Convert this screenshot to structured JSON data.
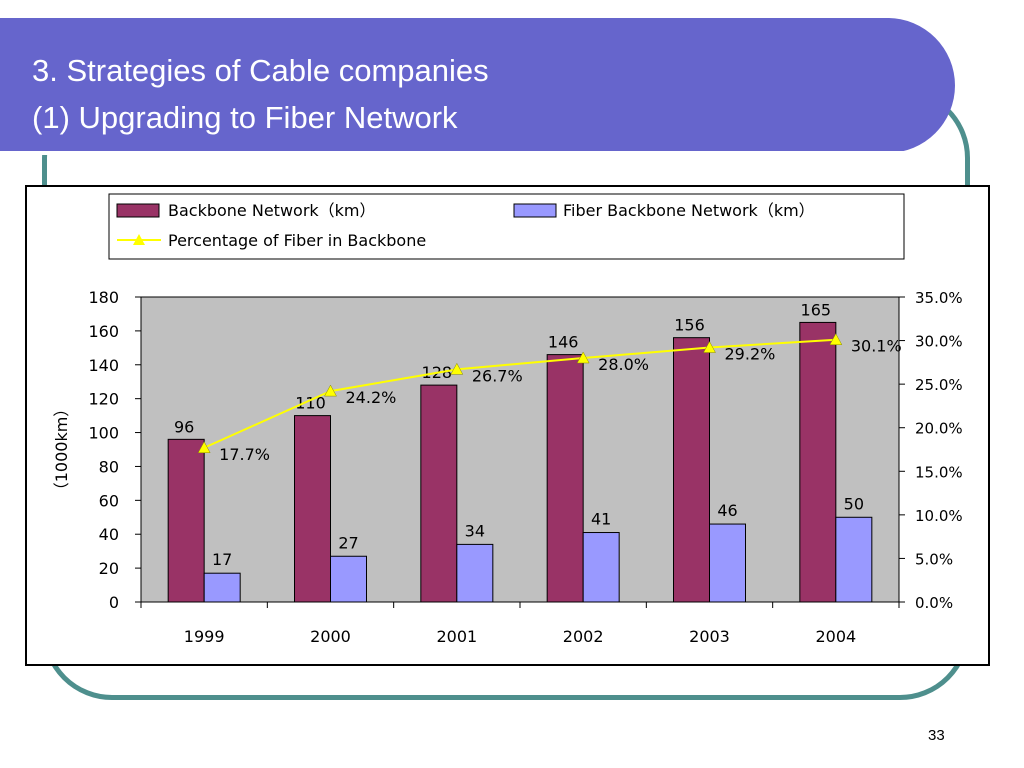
{
  "slide": {
    "title_line_1": "3. Strategies of Cable companies",
    "title_line_2": "(1) Upgrading to Fiber Network",
    "page_number": "33"
  },
  "colors": {
    "title_band": "#6665cc",
    "frame": "#4e8f8d",
    "plot_background": "#c0c0c0",
    "backbone_bar": "#993366",
    "fiber_bar": "#9999ff",
    "percentage_line": "#ffff00"
  },
  "chart_data": {
    "type": "bar",
    "categories": [
      "1999",
      "2000",
      "2001",
      "2002",
      "2003",
      "2004"
    ],
    "series": [
      {
        "name": "Backbone Network（km）",
        "type": "bar",
        "axis": "left",
        "values": [
          96,
          110,
          128,
          146,
          156,
          165
        ],
        "labels": [
          "96",
          "110",
          "128",
          "146",
          "156",
          "165"
        ]
      },
      {
        "name": "Fiber Backbone Network（km）",
        "type": "bar",
        "axis": "left",
        "values": [
          17,
          27,
          34,
          41,
          46,
          50
        ],
        "labels": [
          "17",
          "27",
          "34",
          "41",
          "46",
          "50"
        ]
      },
      {
        "name": "Percentage of Fiber in Backbone",
        "type": "line",
        "axis": "right",
        "values": [
          17.7,
          24.2,
          26.7,
          28.0,
          29.2,
          30.1
        ],
        "labels": [
          "17.7%",
          "24.2%",
          "26.7%",
          "28.0%",
          "29.2%",
          "30.1%"
        ]
      }
    ],
    "ylabel": "（1000km）",
    "ylim": [
      0,
      180
    ],
    "yticks": [
      "0",
      "20",
      "40",
      "60",
      "80",
      "100",
      "120",
      "140",
      "160",
      "180"
    ],
    "y2lim": [
      0,
      35
    ],
    "y2ticks": [
      "0.0%",
      "5.0%",
      "10.0%",
      "15.0%",
      "20.0%",
      "25.0%",
      "30.0%",
      "35.0%"
    ],
    "legend_position": "top",
    "grid": false
  }
}
